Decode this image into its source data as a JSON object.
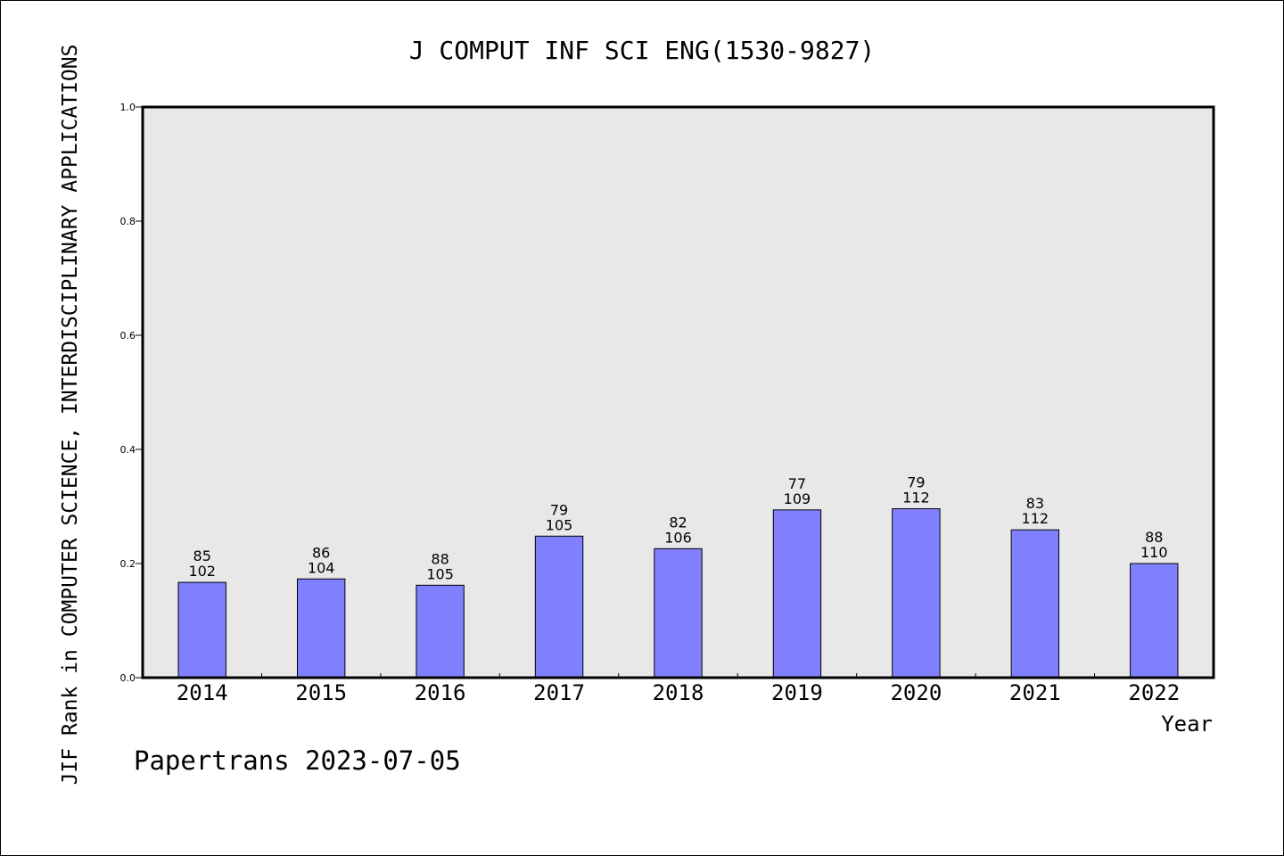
{
  "chart_data": {
    "type": "bar",
    "title": "J COMPUT INF SCI ENG(1530-9827)",
    "xlabel": "Year",
    "ylabel": "JIF Rank in COMPUTER SCIENCE, INTERDISCIPLINARY APPLICATIONS",
    "ylim": [
      0,
      1.0
    ],
    "yticks": [
      "0.0",
      "0.2",
      "0.4",
      "0.6",
      "0.8",
      "1.0"
    ],
    "categories": [
      "2014",
      "2015",
      "2016",
      "2017",
      "2018",
      "2019",
      "2020",
      "2021",
      "2022"
    ],
    "values": [
      0.167,
      0.173,
      0.162,
      0.248,
      0.226,
      0.294,
      0.296,
      0.259,
      0.2
    ],
    "ranks": [
      "85",
      "86",
      "88",
      "79",
      "82",
      "77",
      "79",
      "83",
      "88"
    ],
    "totals": [
      "102",
      "104",
      "105",
      "105",
      "106",
      "109",
      "112",
      "112",
      "110"
    ],
    "grid": false,
    "legend": "none",
    "bar_color": "#8080ff",
    "plot_background": "#e8e8e8",
    "footer": "Papertrans 2023-07-05"
  }
}
